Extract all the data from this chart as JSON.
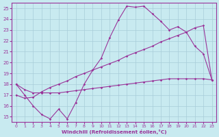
{
  "xlabel": "Windchill (Refroidissement éolien,°C)",
  "background_color": "#c8eaf0",
  "grid_color": "#a8ccd8",
  "line_color": "#993399",
  "xlim_min": -0.5,
  "xlim_max": 23.5,
  "ylim_min": 14.5,
  "ylim_max": 25.5,
  "xticks": [
    0,
    1,
    2,
    3,
    4,
    5,
    6,
    7,
    8,
    9,
    10,
    11,
    12,
    13,
    14,
    15,
    16,
    17,
    18,
    19,
    20,
    21,
    22,
    23
  ],
  "yticks": [
    15,
    16,
    17,
    18,
    19,
    20,
    21,
    22,
    23,
    24,
    25
  ],
  "line1_x": [
    0,
    1,
    2,
    3,
    4,
    5,
    6,
    7,
    8,
    9,
    10,
    11,
    12,
    13,
    14,
    15,
    16,
    17,
    18,
    19,
    20,
    21,
    22,
    23
  ],
  "line1_y": [
    18.0,
    17.0,
    16.0,
    15.2,
    14.8,
    15.7,
    14.8,
    16.3,
    18.0,
    19.3,
    20.4,
    22.3,
    23.9,
    25.2,
    25.1,
    25.2,
    24.5,
    23.8,
    23.0,
    23.3,
    22.8,
    21.5,
    20.8,
    18.4
  ],
  "line2_x": [
    0,
    1,
    2,
    3,
    4,
    5,
    6,
    7,
    8,
    9,
    10,
    11,
    12,
    13,
    14,
    15,
    16,
    17,
    18,
    19,
    20,
    21,
    22,
    23
  ],
  "line2_y": [
    17.0,
    16.7,
    16.8,
    17.3,
    17.7,
    18.0,
    18.3,
    18.7,
    19.0,
    19.3,
    19.6,
    19.9,
    20.2,
    20.6,
    20.9,
    21.2,
    21.5,
    21.9,
    22.2,
    22.5,
    22.8,
    23.2,
    23.4,
    18.4
  ],
  "line3_x": [
    0,
    1,
    2,
    3,
    4,
    5,
    6,
    7,
    8,
    9,
    10,
    11,
    12,
    13,
    14,
    15,
    16,
    17,
    18,
    19,
    20,
    21,
    22,
    23
  ],
  "line3_y": [
    18.0,
    17.5,
    17.2,
    17.2,
    17.2,
    17.2,
    17.3,
    17.4,
    17.5,
    17.6,
    17.7,
    17.8,
    17.9,
    18.0,
    18.1,
    18.2,
    18.3,
    18.4,
    18.5,
    18.5,
    18.5,
    18.5,
    18.5,
    18.4
  ]
}
